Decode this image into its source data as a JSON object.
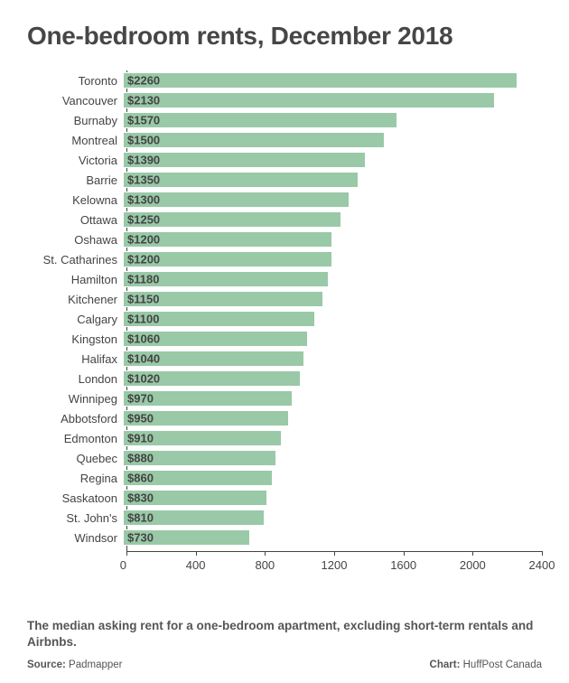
{
  "title": "One-bedroom rents, December 2018",
  "subtitle": "The median asking rent for a one-bedroom apartment, excluding short-term rentals and Airbnbs.",
  "source_label": "Source:",
  "source_value": "Padmapper",
  "credit_label": "Chart:",
  "credit_value": "HuffPost Canada",
  "chart": {
    "type": "bar-horizontal",
    "bar_color": "#99c9a7",
    "bar_border_color": "#ffffff",
    "axis_color": "#444444",
    "background_color": "#ffffff",
    "value_prefix": "$",
    "xlim": [
      0,
      2400
    ],
    "xticks": [
      0,
      400,
      800,
      1200,
      1600,
      2000,
      2400
    ],
    "title_fontsize": 28,
    "label_fontsize": 13,
    "value_fontsize": 13,
    "categories": [
      "Toronto",
      "Vancouver",
      "Burnaby",
      "Montreal",
      "Victoria",
      "Barrie",
      "Kelowna",
      "Ottawa",
      "Oshawa",
      "St. Catharines",
      "Hamilton",
      "Kitchener",
      "Calgary",
      "Kingston",
      "Halifax",
      "London",
      "Winnipeg",
      "Abbotsford",
      "Edmonton",
      "Quebec",
      "Regina",
      "Saskatoon",
      "St. John's",
      "Windsor"
    ],
    "values": [
      2260,
      2130,
      1570,
      1500,
      1390,
      1350,
      1300,
      1250,
      1200,
      1200,
      1180,
      1150,
      1100,
      1060,
      1040,
      1020,
      970,
      950,
      910,
      880,
      860,
      830,
      810,
      730
    ]
  }
}
